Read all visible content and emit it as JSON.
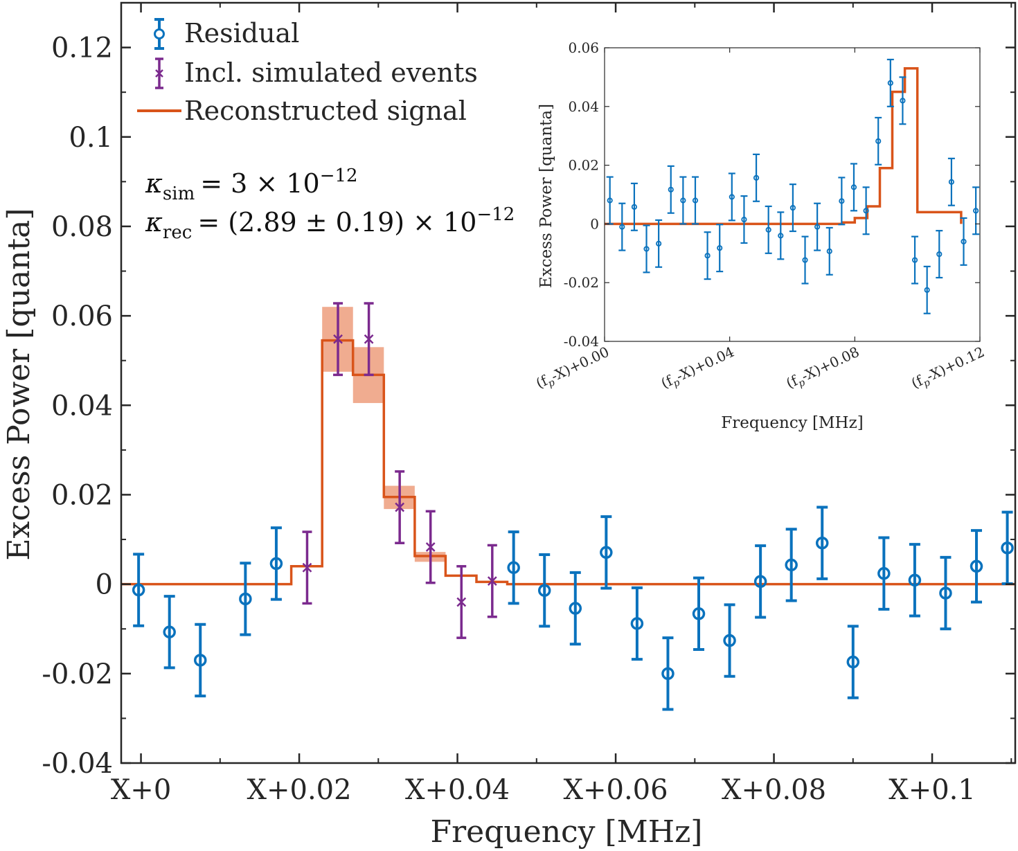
{
  "colors": {
    "residual": "#0a72bd",
    "simulated": "#7b2a8e",
    "signal": "#d9541a",
    "band": "#eea384",
    "axis": "#262626"
  },
  "chart_data": [
    {
      "id": "main",
      "type": "scatter",
      "xlabel": "Frequency [MHz]",
      "ylabel": "Excess Power [quanta]",
      "xlim": [
        -0.0025,
        0.1105
      ],
      "ylim": [
        -0.04,
        0.13
      ],
      "xticks": [
        {
          "value": 0,
          "label": "X+0"
        },
        {
          "value": 0.02,
          "label": "X+0.02"
        },
        {
          "value": 0.04,
          "label": "X+0.04"
        },
        {
          "value": 0.06,
          "label": "X+0.06"
        },
        {
          "value": 0.08,
          "label": "X+0.08"
        },
        {
          "value": 0.1,
          "label": "X+0.1"
        }
      ],
      "yticks": [
        {
          "value": -0.04,
          "label": "-0.04"
        },
        {
          "value": -0.02,
          "label": "-0.02"
        },
        {
          "value": 0,
          "label": "0"
        },
        {
          "value": 0.02,
          "label": "0.02"
        },
        {
          "value": 0.04,
          "label": "0.04"
        },
        {
          "value": 0.06,
          "label": "0.06"
        },
        {
          "value": 0.08,
          "label": "0.08"
        },
        {
          "value": 0.1,
          "label": "0.1"
        },
        {
          "value": 0.12,
          "label": "0.12"
        }
      ],
      "legend": {
        "position": "top-left",
        "entries": [
          "Residual",
          "Incl. simulated events",
          "Reconstructed signal"
        ]
      },
      "annotations": {
        "kappa_sim_symbol": "κ",
        "kappa_sim_sub": "sim",
        "kappa_sim_rhs": "= 3 × 10",
        "kappa_sim_exp": "−12",
        "kappa_rec_symbol": "κ",
        "kappa_rec_sub": "rec",
        "kappa_rec_rhs": "= (2.89 ± 0.19) × 10",
        "kappa_rec_exp": "−12"
      },
      "series": [
        {
          "name": "Residual",
          "marker": "circle",
          "x": [
            -0.0003,
            0.0036,
            0.0075,
            0.0132,
            0.0171,
            0.0471,
            0.051,
            0.0549,
            0.0588,
            0.0627,
            0.0666,
            0.0705,
            0.0744,
            0.0783,
            0.0822,
            0.0861,
            0.09,
            0.0939,
            0.0978,
            0.1017,
            0.1056,
            0.1095
          ],
          "y": [
            -0.0013,
            -0.0107,
            -0.017,
            -0.0033,
            0.0046,
            0.0037,
            -0.0014,
            -0.0054,
            0.0071,
            -0.0088,
            -0.02,
            -0.0066,
            -0.0126,
            0.0006,
            0.0043,
            0.0092,
            -0.0174,
            0.0024,
            0.0009,
            -0.002,
            0.004,
            0.0081
          ],
          "err": [
            0.008,
            0.008,
            0.008,
            0.008,
            0.008,
            0.008,
            0.008,
            0.008,
            0.008,
            0.008,
            0.008,
            0.008,
            0.008,
            0.008,
            0.008,
            0.008,
            0.008,
            0.008,
            0.008,
            0.008,
            0.008,
            0.008
          ]
        },
        {
          "name": "Incl. simulated events",
          "marker": "x",
          "x": [
            0.021,
            0.0249,
            0.0288,
            0.0327,
            0.0366,
            0.0405,
            0.0444
          ],
          "y": [
            0.0037,
            0.0548,
            0.0548,
            0.0172,
            0.0083,
            -0.004,
            0.0007
          ],
          "err": [
            0.008,
            0.008,
            0.008,
            0.008,
            0.008,
            0.008,
            0.008
          ]
        },
        {
          "name": "Reconstructed signal",
          "type": "step",
          "edges": [
            -0.0025,
            0.019,
            0.0229,
            0.0268,
            0.0307,
            0.0346,
            0.0385,
            0.0424,
            0.0463,
            0.1105
          ],
          "values": [
            0,
            0.004,
            0.0545,
            0.0468,
            0.0195,
            0.0063,
            0.0019,
            0.0005,
            0,
            0
          ]
        },
        {
          "name": "Signal uncertainty band",
          "type": "band",
          "edges": [
            0.0229,
            0.0268,
            0.0307,
            0.0346,
            0.0385
          ],
          "lower": [
            0.0475,
            0.0405,
            0.0168,
            0.005
          ],
          "upper": [
            0.062,
            0.053,
            0.022,
            0.0072
          ]
        }
      ]
    },
    {
      "id": "inset",
      "type": "scatter",
      "xlabel": "Frequency [MHz]",
      "ylabel": "Excess Power [quanta]",
      "xlim": [
        0,
        0.12
      ],
      "ylim": [
        -0.04,
        0.06
      ],
      "xticks": [
        {
          "value": 0,
          "label_pre": "(f",
          "label_sub": "p",
          "label_post": "-X)+0.00"
        },
        {
          "value": 0.04,
          "label_pre": "(f",
          "label_sub": "p",
          "label_post": "-X)+0.04"
        },
        {
          "value": 0.08,
          "label_pre": "(f",
          "label_sub": "p",
          "label_post": "-X)+0.08"
        },
        {
          "value": 0.12,
          "label_pre": "(f",
          "label_sub": "p",
          "label_post": "-X)+0.12"
        }
      ],
      "yticks": [
        {
          "value": -0.04,
          "label": "-0.04"
        },
        {
          "value": -0.02,
          "label": "-0.02"
        },
        {
          "value": 0,
          "label": "0"
        },
        {
          "value": 0.02,
          "label": "0.02"
        },
        {
          "value": 0.04,
          "label": "0.04"
        },
        {
          "value": 0.06,
          "label": "0.06"
        }
      ],
      "series": [
        {
          "name": "Residual",
          "marker": "circle",
          "x": [
            0.0017,
            0.0056,
            0.0095,
            0.0134,
            0.0173,
            0.0212,
            0.0251,
            0.029,
            0.0329,
            0.0368,
            0.0407,
            0.0446,
            0.0485,
            0.0524,
            0.0563,
            0.0602,
            0.0641,
            0.068,
            0.0719,
            0.0758,
            0.0797,
            0.0836,
            0.0875,
            0.0914,
            0.0953,
            0.0992,
            0.1031,
            0.107,
            0.1109,
            0.1148,
            0.1187
          ],
          "y": [
            0.008,
            -0.001,
            0.0058,
            -0.0085,
            -0.0067,
            0.0117,
            0.008,
            0.008,
            -0.0108,
            -0.0082,
            0.0092,
            0.0015,
            0.0157,
            -0.002,
            -0.004,
            0.0055,
            -0.0123,
            -0.001,
            -0.0093,
            0.0078,
            0.0125,
            0.0045,
            0.0282,
            0.048,
            0.042,
            -0.0123,
            -0.0225,
            -0.0103,
            0.0143,
            -0.006,
            0.0045
          ],
          "err": [
            0.008,
            0.008,
            0.008,
            0.008,
            0.008,
            0.008,
            0.008,
            0.008,
            0.008,
            0.008,
            0.008,
            0.008,
            0.008,
            0.008,
            0.008,
            0.008,
            0.008,
            0.008,
            0.008,
            0.008,
            0.008,
            0.008,
            0.008,
            0.008,
            0.008,
            0.008,
            0.008,
            0.008,
            0.008,
            0.008,
            0.008
          ]
        },
        {
          "name": "Reconstructed signal",
          "type": "step",
          "edges": [
            0,
            0.072,
            0.076,
            0.08,
            0.084,
            0.088,
            0.092,
            0.096,
            0.1,
            0.114
          ],
          "values": [
            0,
            0,
            0.0005,
            0.002,
            0.006,
            0.019,
            0.045,
            0.053,
            0.004,
            0
          ]
        }
      ]
    }
  ]
}
